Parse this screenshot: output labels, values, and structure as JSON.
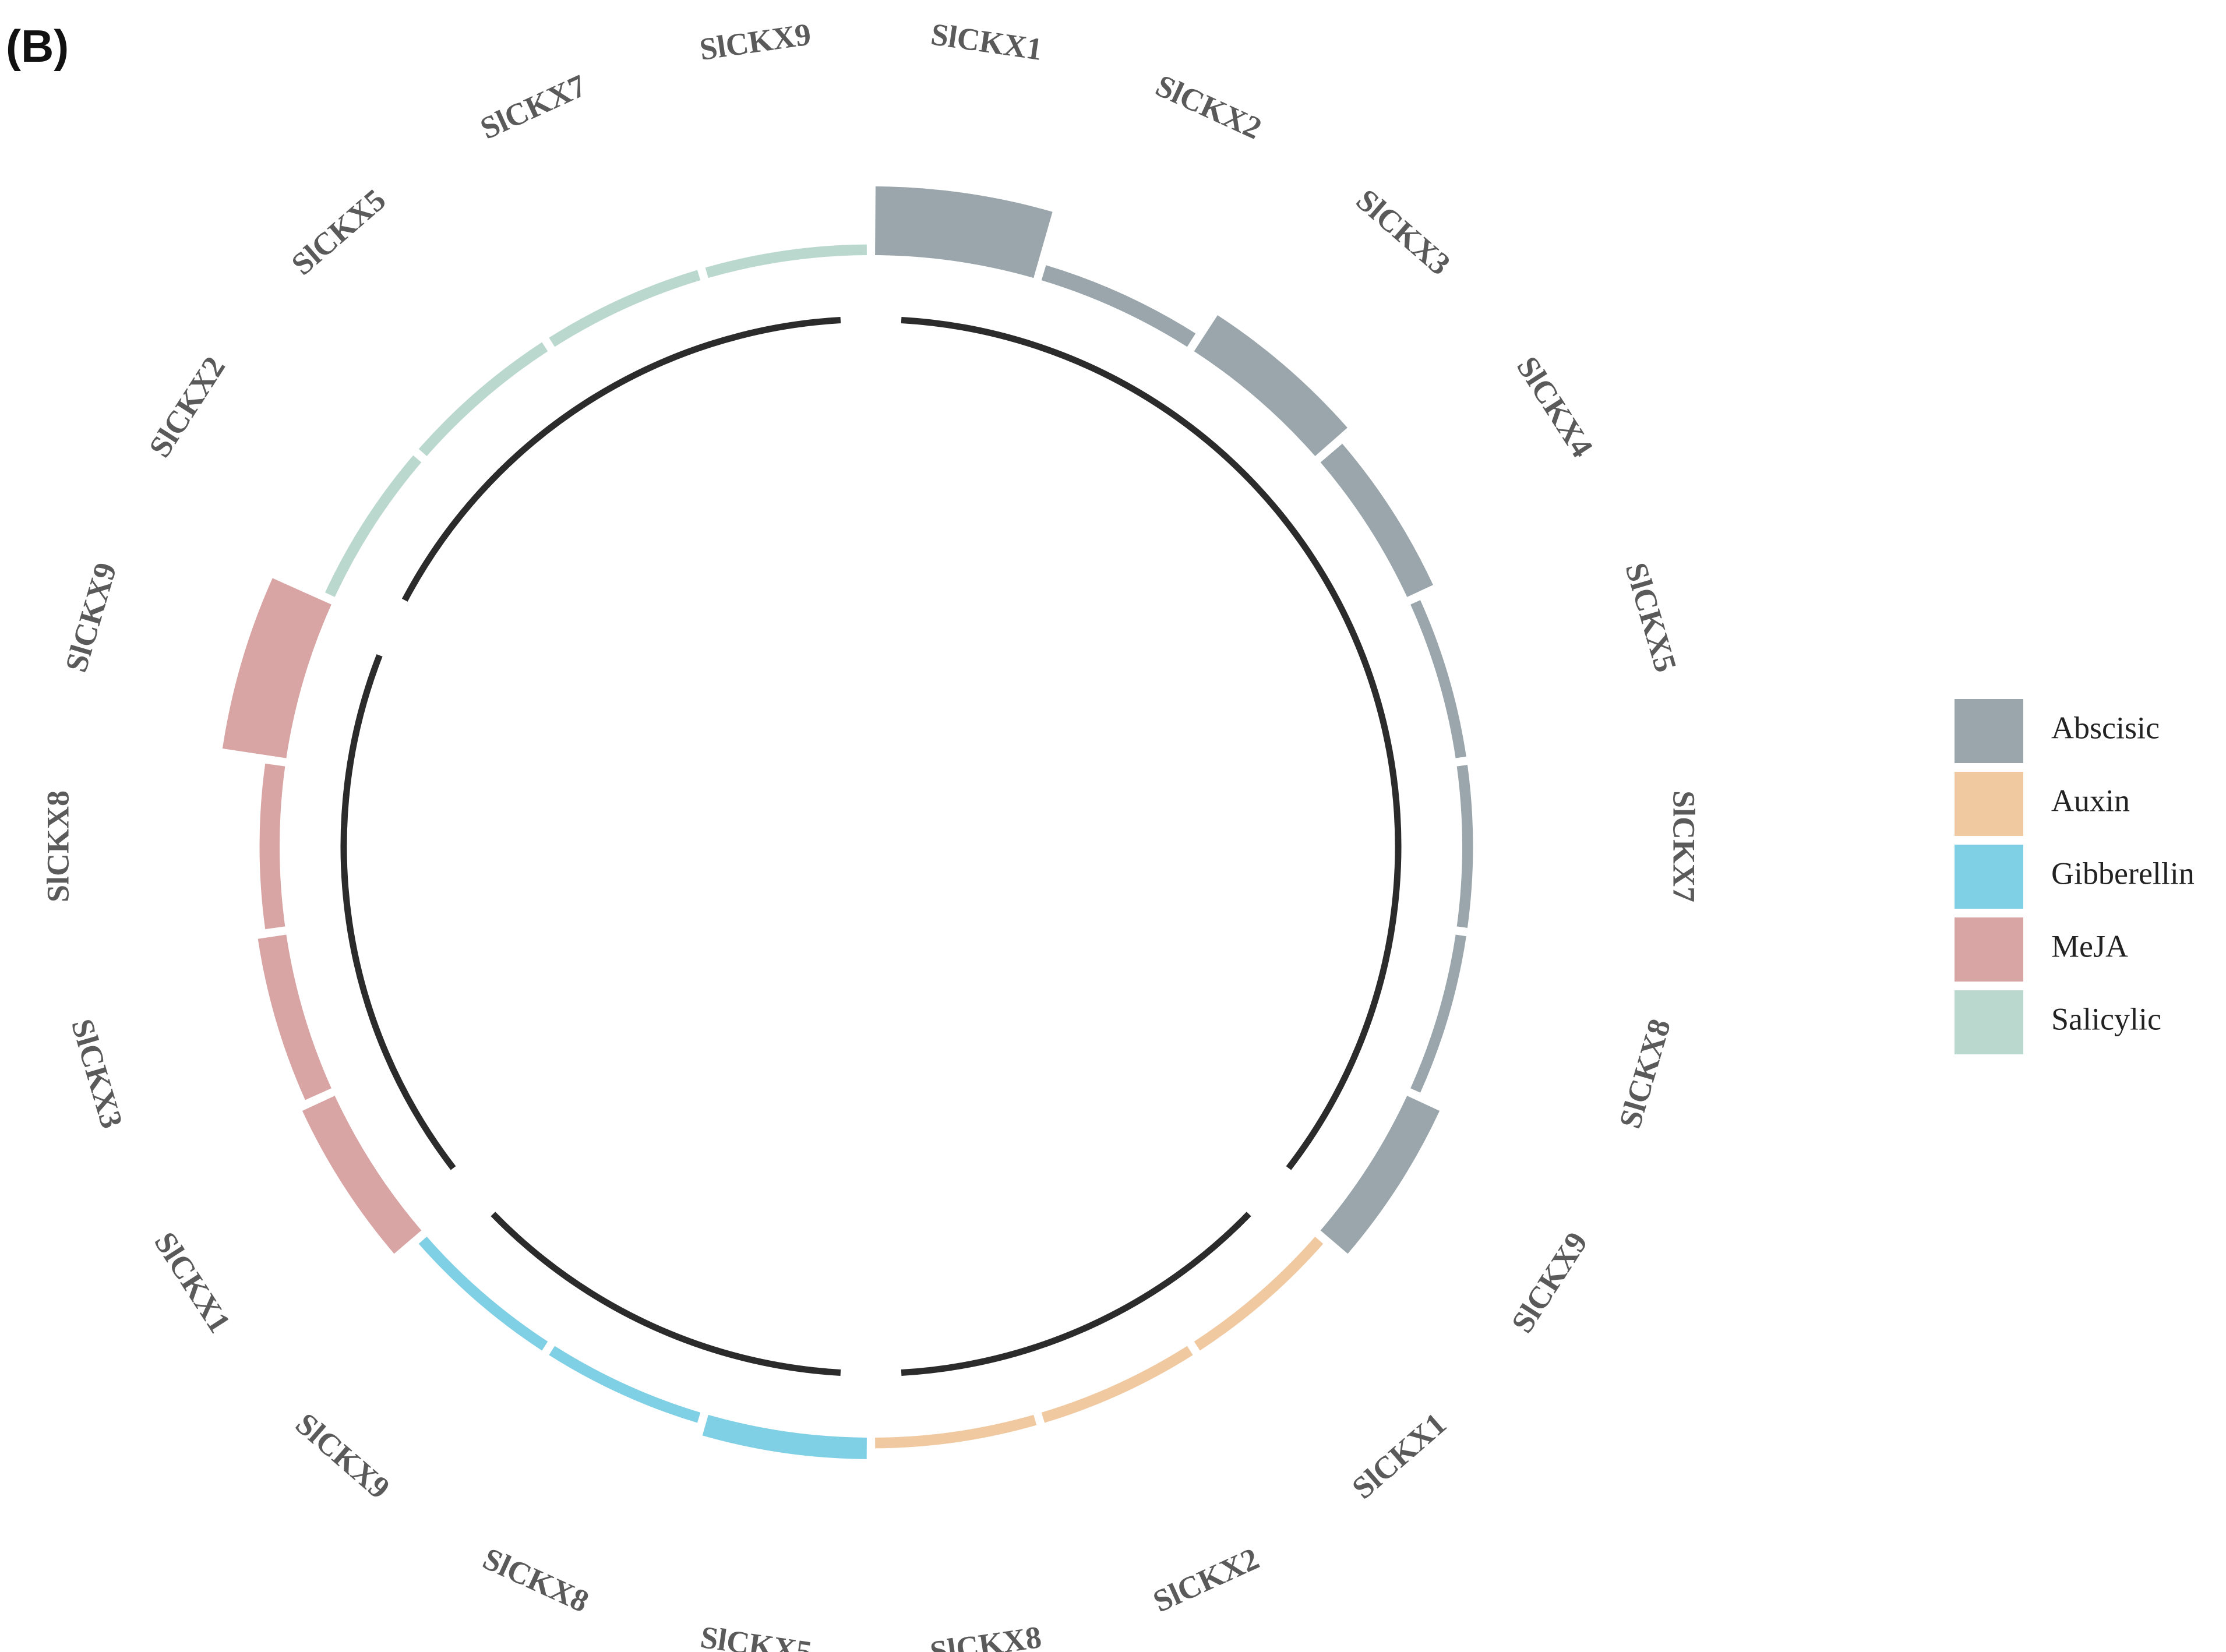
{
  "panel_label": "(B)",
  "chart_data": {
    "type": "circos",
    "groups": [
      {
        "name": "Abscisic",
        "color": "#9aa6ab",
        "genes": [
          {
            "label": "SlCKX1",
            "value": 9.6
          },
          {
            "label": "SlCKX2",
            "value": 2.2
          },
          {
            "label": "SlCKX3",
            "value": 6.0
          },
          {
            "label": "SlCKX4",
            "value": 4.0
          },
          {
            "label": "SlCKX5",
            "value": 1.5
          },
          {
            "label": "SlCKX7",
            "value": 1.5
          },
          {
            "label": "SlCKX8",
            "value": 1.5
          },
          {
            "label": "SlCKX9",
            "value": 5.0
          }
        ]
      },
      {
        "name": "Auxin",
        "color": "#f0c9a0",
        "genes": [
          {
            "label": "SlCKX1",
            "value": 1.5
          },
          {
            "label": "SlCKX2",
            "value": 1.5
          },
          {
            "label": "SlCKX8",
            "value": 1.5
          }
        ]
      },
      {
        "name": "Gibberellin",
        "color": "#7fcfe5",
        "genes": [
          {
            "label": "SlCKX5",
            "value": 3.0
          },
          {
            "label": "SlCKX8",
            "value": 1.5
          },
          {
            "label": "SlCKX9",
            "value": 1.5
          }
        ]
      },
      {
        "name": "MeJA",
        "color": "#d8a4a4",
        "genes": [
          {
            "label": "SlCKX1",
            "value": 5.0
          },
          {
            "label": "SlCKX3",
            "value": 4.0
          },
          {
            "label": "SlCKX8",
            "value": 2.8
          },
          {
            "label": "SlCKX9",
            "value": 9.0
          }
        ]
      },
      {
        "name": "Salicylic",
        "color": "#bad8ce",
        "genes": [
          {
            "label": "SlCKX2",
            "value": 1.5
          },
          {
            "label": "SlCKX5",
            "value": 1.5
          },
          {
            "label": "SlCKX7",
            "value": 1.5
          },
          {
            "label": "SlCKX9",
            "value": 1.5
          }
        ]
      }
    ],
    "legend": {
      "position": "right",
      "items": [
        "Abscisic",
        "Auxin",
        "Gibberellin",
        "MeJA",
        "Salicylic"
      ]
    }
  }
}
